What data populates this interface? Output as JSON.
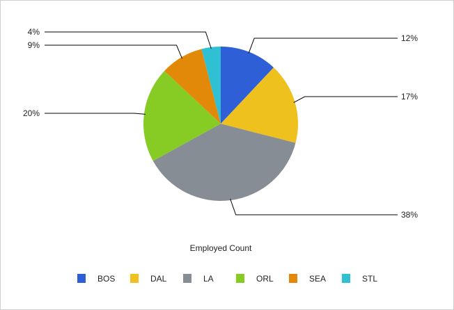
{
  "chart_data": {
    "type": "pie",
    "title": "Employed Count",
    "categories": [
      "BOS",
      "DAL",
      "LA",
      "ORL",
      "SEA",
      "STL"
    ],
    "values": [
      12,
      17,
      38,
      20,
      9,
      4
    ],
    "labels": [
      "12%",
      "17%",
      "38%",
      "20%",
      "9%",
      "4%"
    ],
    "colors": [
      "#2f5fd6",
      "#efc11f",
      "#878d95",
      "#87cb25",
      "#e2890a",
      "#2fc0d3"
    ],
    "legend_position": "bottom",
    "start": "top",
    "direction": "clockwise"
  }
}
